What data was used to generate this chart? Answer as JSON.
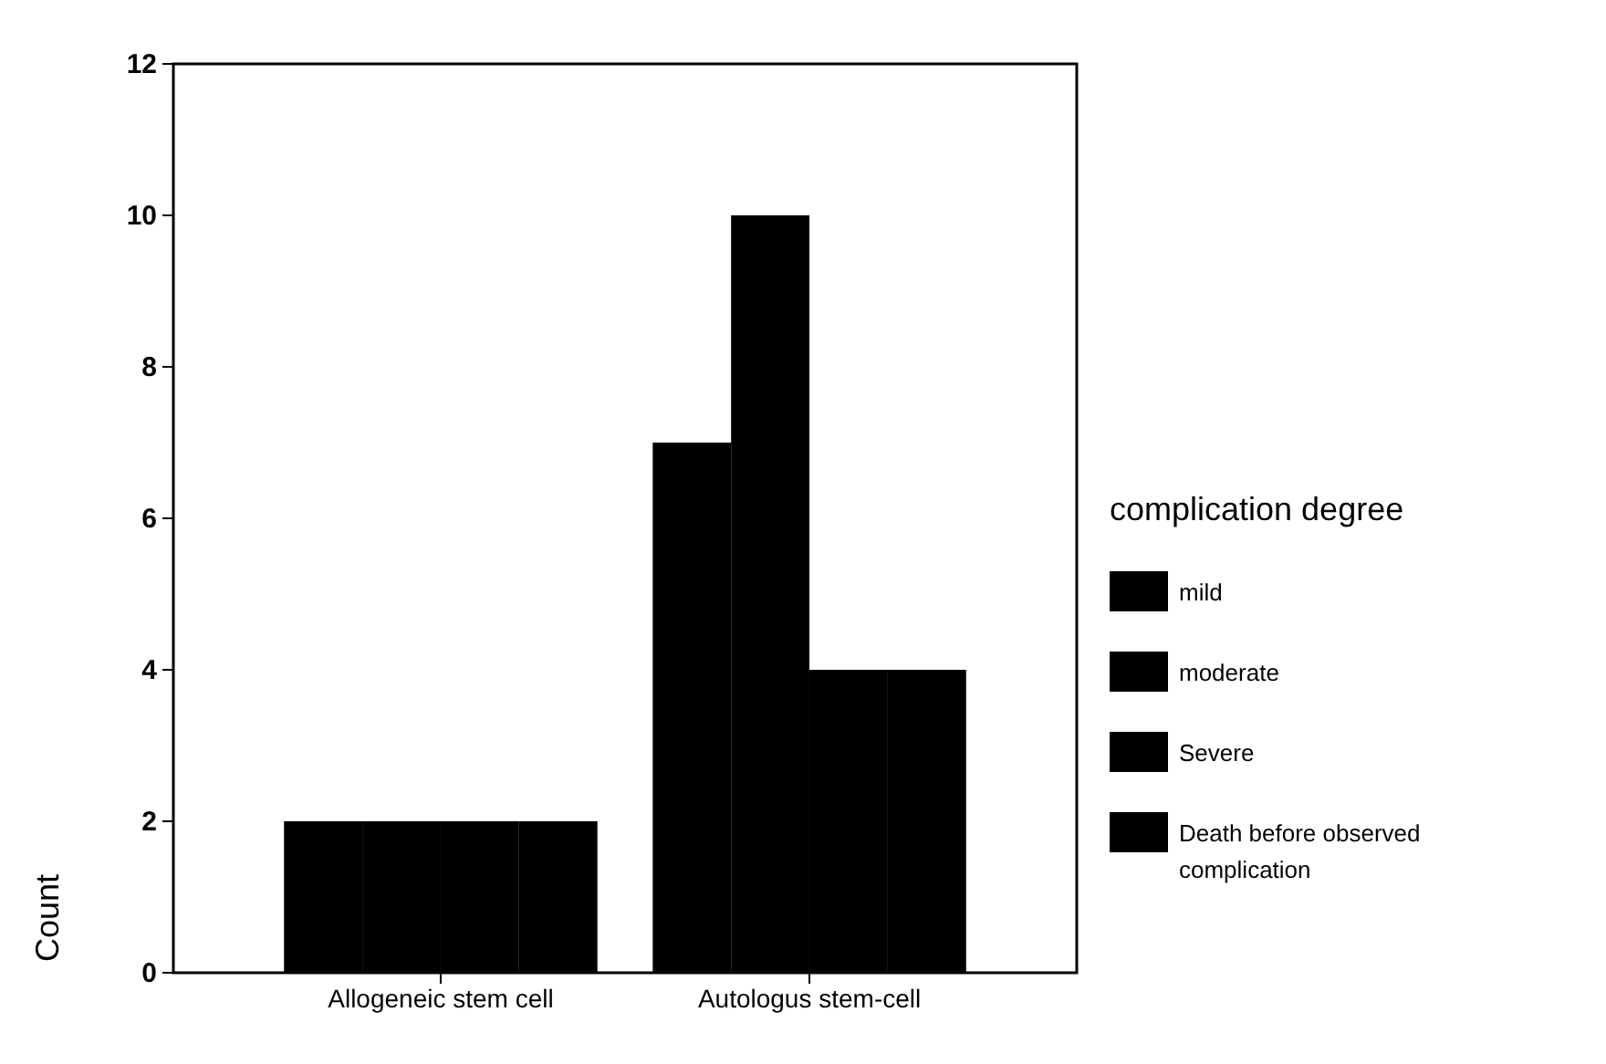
{
  "chart_data": {
    "type": "bar",
    "ylabel": "Count",
    "legend_title": "complication degree",
    "categories": [
      "Allogeneic stem cell",
      "Autologus stem-cell"
    ],
    "series": [
      {
        "name": "mild",
        "color": "#000000",
        "values": [
          2,
          7
        ]
      },
      {
        "name": "moderate",
        "color": "#000000",
        "values": [
          2,
          10
        ]
      },
      {
        "name": "Severe",
        "color": "#000000",
        "values": [
          2,
          4
        ]
      },
      {
        "name": "Death before observed complication",
        "color": "#000000",
        "values": [
          2,
          4
        ]
      }
    ],
    "ylim": [
      0,
      12
    ],
    "yticks": [
      0,
      2,
      4,
      6,
      8,
      10,
      12
    ],
    "legend": "right"
  }
}
